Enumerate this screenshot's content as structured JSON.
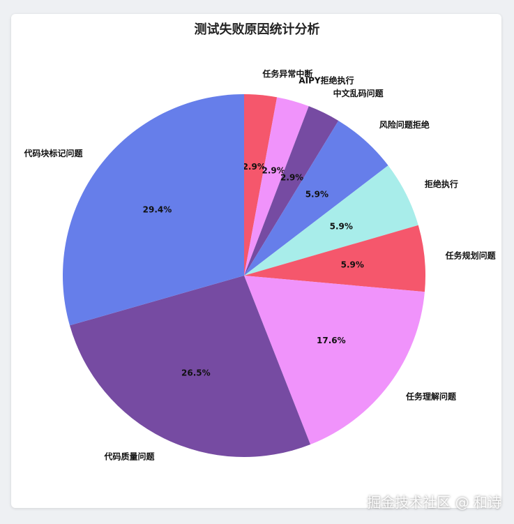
{
  "chart_data": {
    "type": "pie",
    "title": "测试失败原因统计分析",
    "start_angle": "top",
    "direction": "clockwise",
    "slices": [
      {
        "label": "任务异常中断",
        "value": 2.9,
        "pct_label": "2.9%",
        "color": "#f5576c"
      },
      {
        "label": "AIPY拒绝执行",
        "value": 2.9,
        "pct_label": "2.9%",
        "color": "#f093fb"
      },
      {
        "label": "中文乱码问题",
        "value": 2.9,
        "pct_label": "2.9%",
        "color": "#764ba2"
      },
      {
        "label": "风险问题拒绝",
        "value": 5.9,
        "pct_label": "5.9%",
        "color": "#667eea"
      },
      {
        "label": "拒绝执行",
        "value": 5.9,
        "pct_label": "5.9%",
        "color": "#a8edea"
      },
      {
        "label": "任务规划问题",
        "value": 5.9,
        "pct_label": "5.9%",
        "color": "#f5576c"
      },
      {
        "label": "任务理解问题",
        "value": 17.6,
        "pct_label": "17.6%",
        "color": "#f093fb"
      },
      {
        "label": "代码质量问题",
        "value": 26.5,
        "pct_label": "26.5%",
        "color": "#764ba2"
      },
      {
        "label": "代码块标记问题",
        "value": 29.4,
        "pct_label": "29.4%",
        "color": "#667eea"
      }
    ]
  },
  "watermark": "掘金技术社区 @ 和诗"
}
